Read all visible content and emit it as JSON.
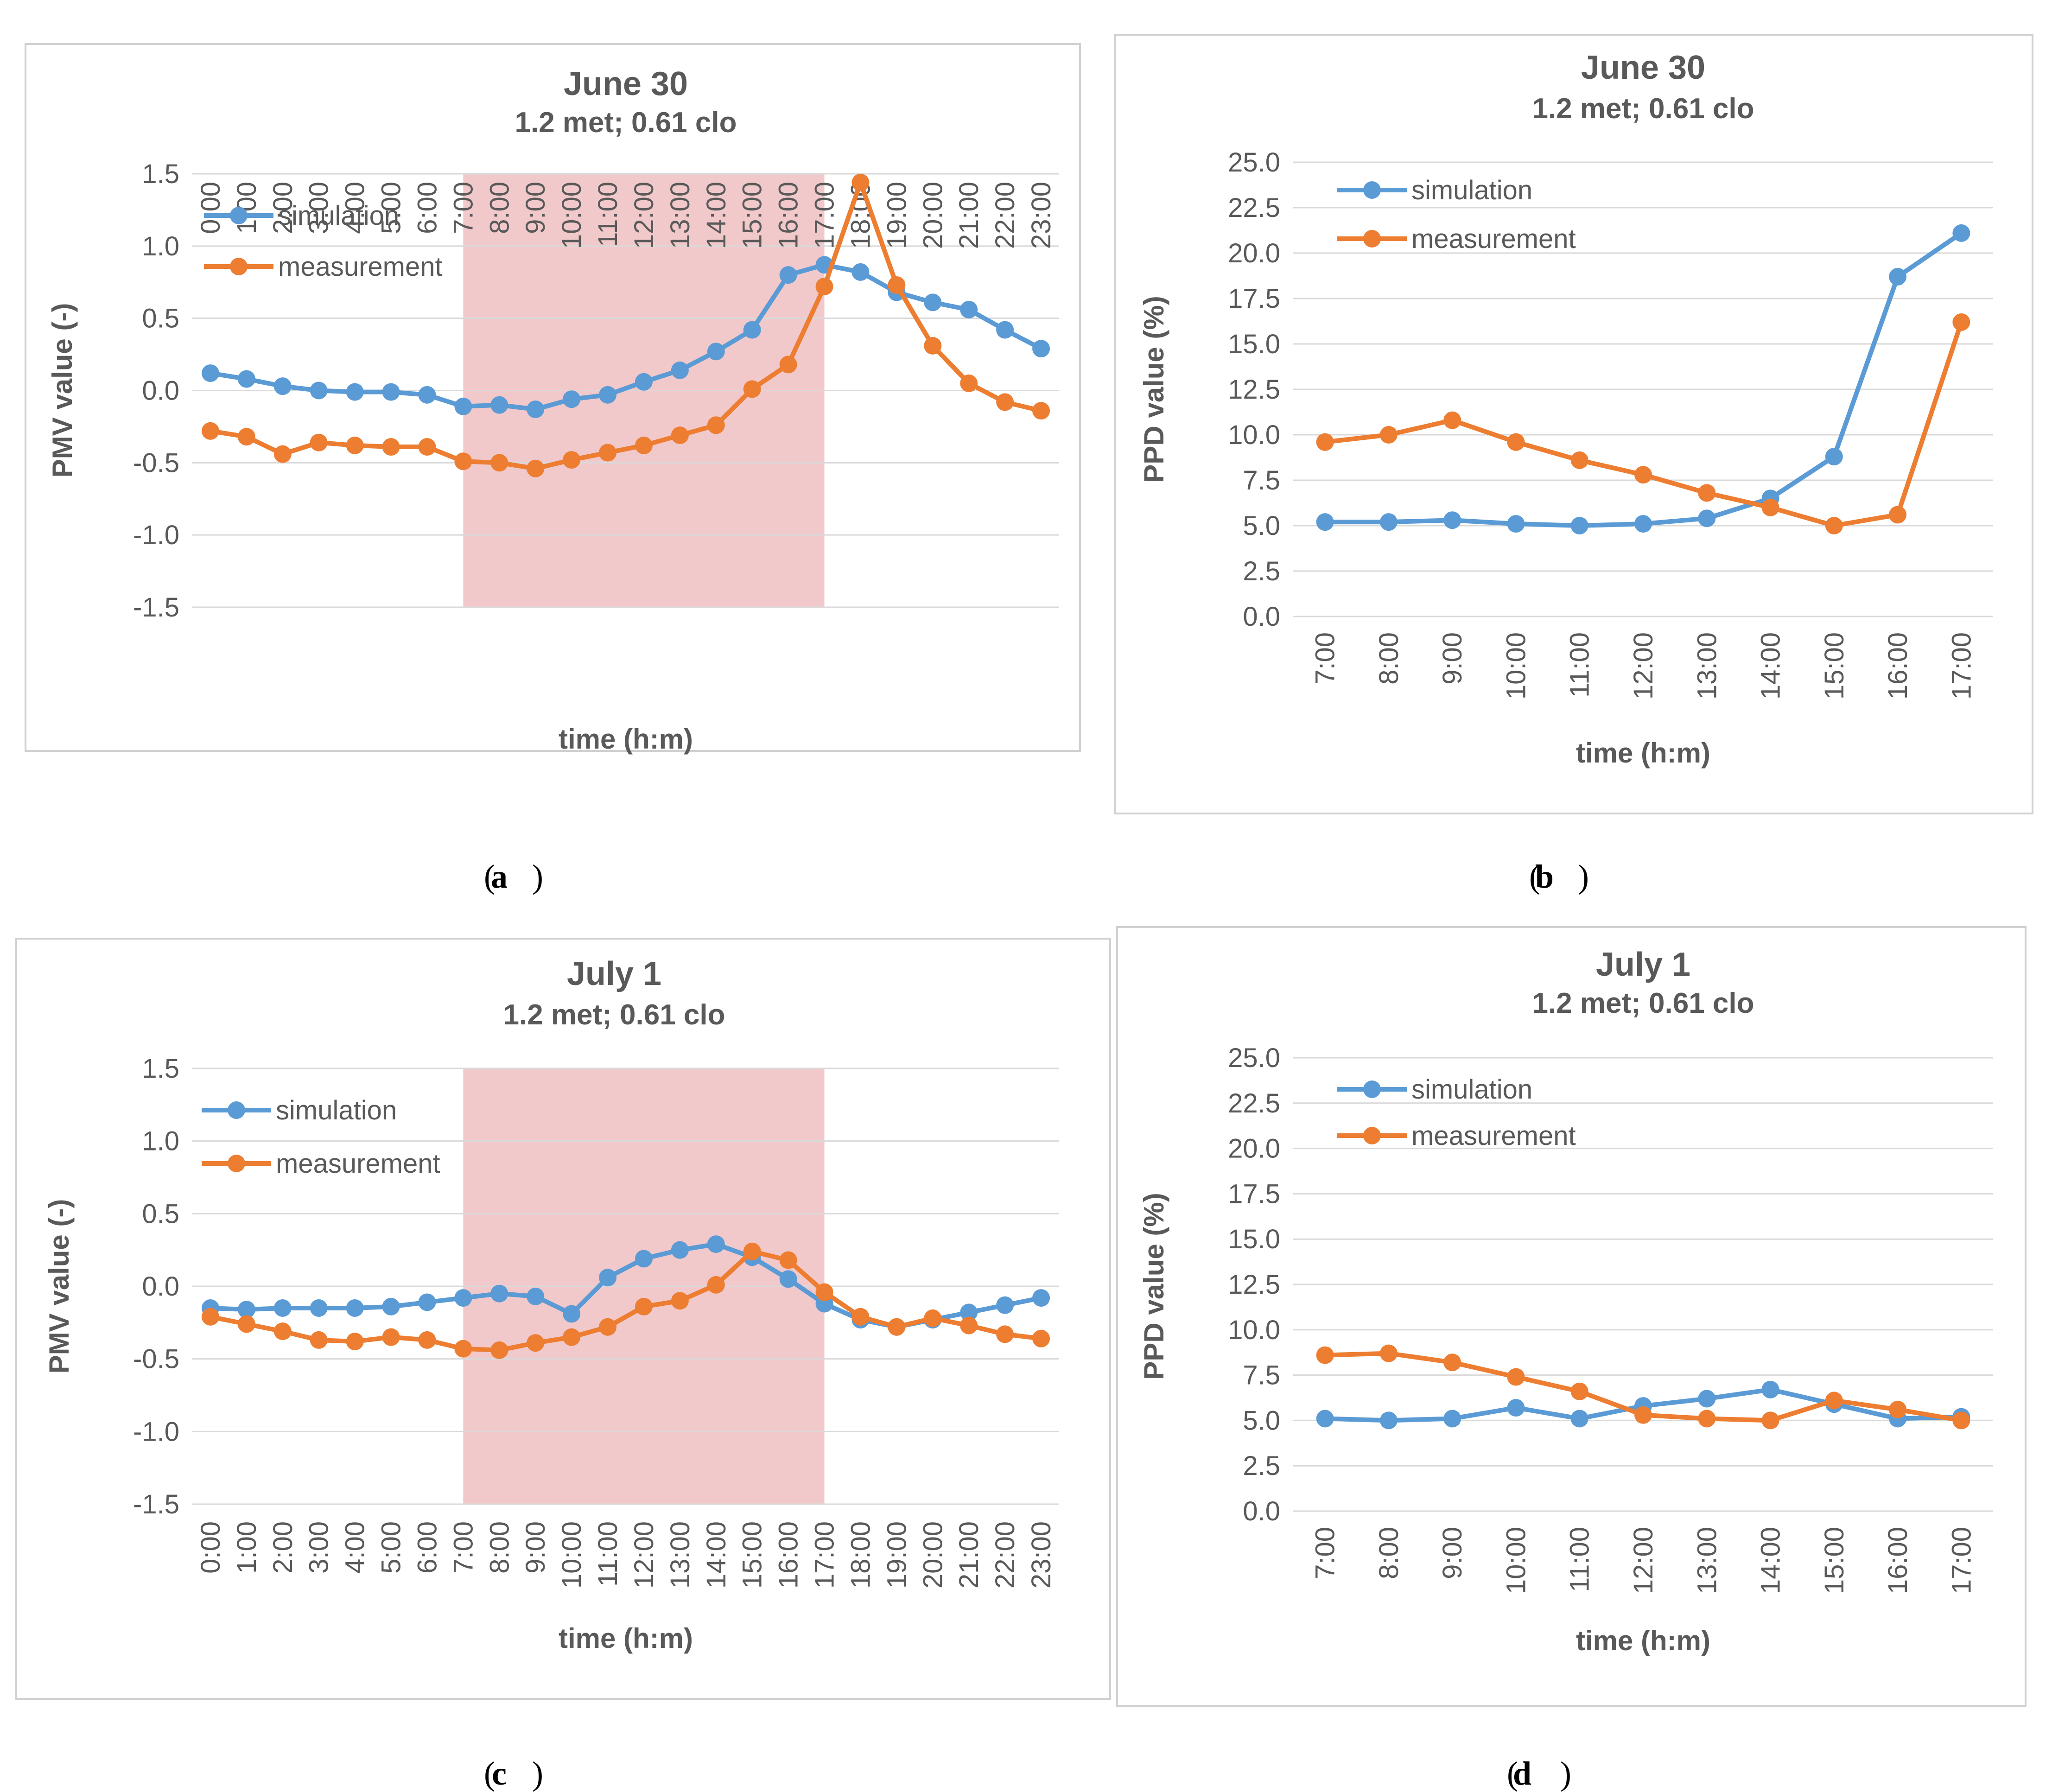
{
  "colors": {
    "simulation": "#5B9BD5",
    "measurement": "#ED7D31",
    "band": "#F2C9CB",
    "grid": "#D9D9D9",
    "frame": "#D0D0D0"
  },
  "chart_data": [
    {
      "id": "a",
      "type": "line",
      "caption": "a",
      "title": "June 30",
      "subtitle": "1.2 met; 0.61 clo",
      "xlabel": "time (h:m)",
      "ylabel": "PMV value (-)",
      "ylim": [
        -1.5,
        1.5
      ],
      "yticks": [
        "1.5",
        "1.0",
        "0.5",
        "0.0",
        "-0.5",
        "-1.0",
        "-1.5"
      ],
      "ytick_values": [
        1.5,
        1.0,
        0.5,
        0.0,
        -0.5,
        -1.0,
        -1.5
      ],
      "categories": [
        "0:00",
        "1:00",
        "2:00",
        "3:00",
        "4:00",
        "5:00",
        "6:00",
        "7:00",
        "8:00",
        "9:00",
        "10:00",
        "11:00",
        "12:00",
        "13:00",
        "14:00",
        "15:00",
        "16:00",
        "17:00",
        "18:00",
        "19:00",
        "20:00",
        "21:00",
        "22:00",
        "23:00"
      ],
      "highlight": {
        "from": "7:00",
        "to": "17:00"
      },
      "legend": [
        "simulation",
        "measurement"
      ],
      "series": [
        {
          "name": "simulation",
          "values": [
            0.12,
            0.08,
            0.03,
            0.0,
            -0.01,
            -0.01,
            -0.03,
            -0.11,
            -0.1,
            -0.13,
            -0.06,
            -0.03,
            0.06,
            0.14,
            0.27,
            0.42,
            0.8,
            0.87,
            0.82,
            0.68,
            0.61,
            0.56,
            0.42,
            0.29
          ]
        },
        {
          "name": "measurement",
          "values": [
            -0.28,
            -0.32,
            -0.44,
            -0.36,
            -0.38,
            -0.39,
            -0.39,
            -0.49,
            -0.5,
            -0.54,
            -0.48,
            -0.43,
            -0.38,
            -0.31,
            -0.24,
            0.01,
            0.18,
            0.72,
            1.44,
            0.73,
            0.31,
            0.05,
            -0.08,
            -0.14
          ]
        }
      ]
    },
    {
      "id": "b",
      "type": "line",
      "caption": "b",
      "title": "June 30",
      "subtitle": "1.2 met; 0.61 clo",
      "xlabel": "time (h:m)",
      "ylabel": "PPD value (%)",
      "ylim": [
        0,
        25
      ],
      "yticks": [
        "25.0",
        "22.5",
        "20.0",
        "17.5",
        "15.0",
        "12.5",
        "10.0",
        "7.5",
        "5.0",
        "2.5",
        "0.0"
      ],
      "ytick_values": [
        25,
        22.5,
        20,
        17.5,
        15,
        12.5,
        10,
        7.5,
        5,
        2.5,
        0
      ],
      "categories": [
        "7:00",
        "8:00",
        "9:00",
        "10:00",
        "11:00",
        "12:00",
        "13:00",
        "14:00",
        "15:00",
        "16:00",
        "17:00"
      ],
      "legend": [
        "simulation",
        "measurement"
      ],
      "series": [
        {
          "name": "simulation",
          "values": [
            5.2,
            5.2,
            5.3,
            5.1,
            5.0,
            5.1,
            5.4,
            6.5,
            8.8,
            18.7,
            21.1
          ]
        },
        {
          "name": "measurement",
          "values": [
            9.6,
            10.0,
            10.8,
            9.6,
            8.6,
            7.8,
            6.8,
            6.0,
            5.0,
            5.6,
            16.2
          ]
        }
      ]
    },
    {
      "id": "c",
      "type": "line",
      "caption": "c",
      "title": "July 1",
      "subtitle": "1.2 met; 0.61 clo",
      "xlabel": "time (h:m)",
      "ylabel": "PMV value (-)",
      "ylim": [
        -1.5,
        1.5
      ],
      "yticks": [
        "1.5",
        "1.0",
        "0.5",
        "0.0",
        "-0.5",
        "-1.0",
        "-1.5"
      ],
      "ytick_values": [
        1.5,
        1.0,
        0.5,
        0.0,
        -0.5,
        -1.0,
        -1.5
      ],
      "categories": [
        "0:00",
        "1:00",
        "2:00",
        "3:00",
        "4:00",
        "5:00",
        "6:00",
        "7:00",
        "8:00",
        "9:00",
        "10:00",
        "11:00",
        "12:00",
        "13:00",
        "14:00",
        "15:00",
        "16:00",
        "17:00",
        "18:00",
        "19:00",
        "20:00",
        "21:00",
        "22:00",
        "23:00"
      ],
      "highlight": {
        "from": "7:00",
        "to": "17:00"
      },
      "legend": [
        "simulation",
        "measurement"
      ],
      "series": [
        {
          "name": "simulation",
          "values": [
            -0.15,
            -0.16,
            -0.15,
            -0.15,
            -0.15,
            -0.14,
            -0.11,
            -0.08,
            -0.05,
            -0.07,
            -0.19,
            0.06,
            0.19,
            0.25,
            0.29,
            0.2,
            0.05,
            -0.12,
            -0.23,
            -0.28,
            -0.23,
            -0.18,
            -0.13,
            -0.08
          ]
        },
        {
          "name": "measurement",
          "values": [
            -0.21,
            -0.26,
            -0.31,
            -0.37,
            -0.38,
            -0.35,
            -0.37,
            -0.43,
            -0.44,
            -0.39,
            -0.35,
            -0.28,
            -0.14,
            -0.1,
            0.01,
            0.24,
            0.18,
            -0.04,
            -0.21,
            -0.28,
            -0.22,
            -0.27,
            -0.33,
            -0.36
          ]
        }
      ]
    },
    {
      "id": "d",
      "type": "line",
      "caption": "d",
      "title": "July 1",
      "subtitle": "1.2 met; 0.61 clo",
      "xlabel": "time (h:m)",
      "ylabel": "PPD value (%)",
      "ylim": [
        0,
        25
      ],
      "yticks": [
        "25.0",
        "22.5",
        "20.0",
        "17.5",
        "15.0",
        "12.5",
        "10.0",
        "7.5",
        "5.0",
        "2.5",
        "0.0"
      ],
      "ytick_values": [
        25,
        22.5,
        20,
        17.5,
        15,
        12.5,
        10,
        7.5,
        5,
        2.5,
        0
      ],
      "categories": [
        "7:00",
        "8:00",
        "9:00",
        "10:00",
        "11:00",
        "12:00",
        "13:00",
        "14:00",
        "15:00",
        "16:00",
        "17:00"
      ],
      "legend": [
        "simulation",
        "measurement"
      ],
      "series": [
        {
          "name": "simulation",
          "values": [
            5.1,
            5.0,
            5.1,
            5.7,
            5.1,
            5.8,
            6.2,
            6.7,
            5.9,
            5.1,
            5.2
          ]
        },
        {
          "name": "measurement",
          "values": [
            8.6,
            8.7,
            8.2,
            7.4,
            6.6,
            5.3,
            5.1,
            5.0,
            6.1,
            5.6,
            5.0
          ]
        }
      ]
    }
  ]
}
